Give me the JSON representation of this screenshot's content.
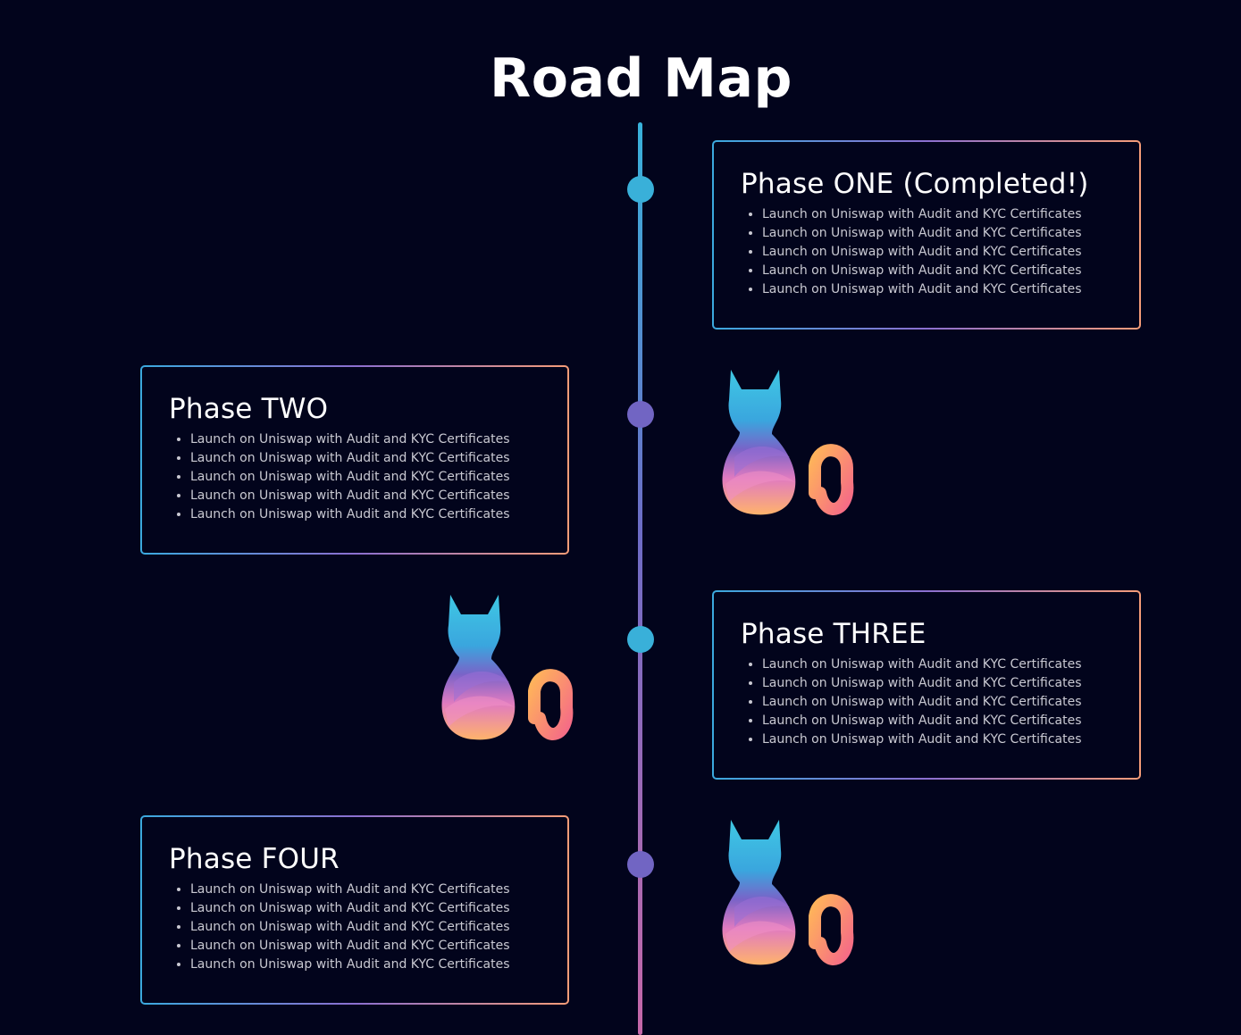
{
  "page": {
    "title": "Road Map"
  },
  "colors": {
    "background": "#02041c",
    "timeline_top": "#38b2db",
    "timeline_bottom": "#c668a8",
    "dot_blue": "#39b0d9",
    "dot_purple": "#7165c3",
    "border_start": "#3ba9de",
    "border_end": "#f59c78"
  },
  "phases": [
    {
      "title": "Phase ONE (Completed!)",
      "items": [
        "Launch on Uniswap with Audit and KYC Certificates",
        "Launch on Uniswap with Audit and KYC Certificates",
        "Launch on Uniswap with Audit and KYC Certificates",
        "Launch on Uniswap with Audit and KYC Certificates",
        "Launch on Uniswap with Audit and KYC Certificates"
      ]
    },
    {
      "title": "Phase TWO",
      "items": [
        "Launch on Uniswap with Audit and KYC Certificates",
        "Launch on Uniswap with Audit and KYC Certificates",
        "Launch on Uniswap with Audit and KYC Certificates",
        "Launch on Uniswap with Audit and KYC Certificates",
        "Launch on Uniswap with Audit and KYC Certificates"
      ]
    },
    {
      "title": "Phase THREE",
      "items": [
        "Launch on Uniswap with Audit and KYC Certificates",
        "Launch on Uniswap with Audit and KYC Certificates",
        "Launch on Uniswap with Audit and KYC Certificates",
        "Launch on Uniswap with Audit and KYC Certificates",
        "Launch on Uniswap with Audit and KYC Certificates"
      ]
    },
    {
      "title": "Phase FOUR",
      "items": [
        "Launch on Uniswap with Audit and KYC Certificates",
        "Launch on Uniswap with Audit and KYC Certificates",
        "Launch on Uniswap with Audit and KYC Certificates",
        "Launch on Uniswap with Audit and KYC Certificates",
        "Launch on Uniswap with Audit and KYC Certificates"
      ]
    }
  ],
  "icons": {
    "mascot": "gradient-cat-icon",
    "milestone": "milestone-dot-icon"
  }
}
